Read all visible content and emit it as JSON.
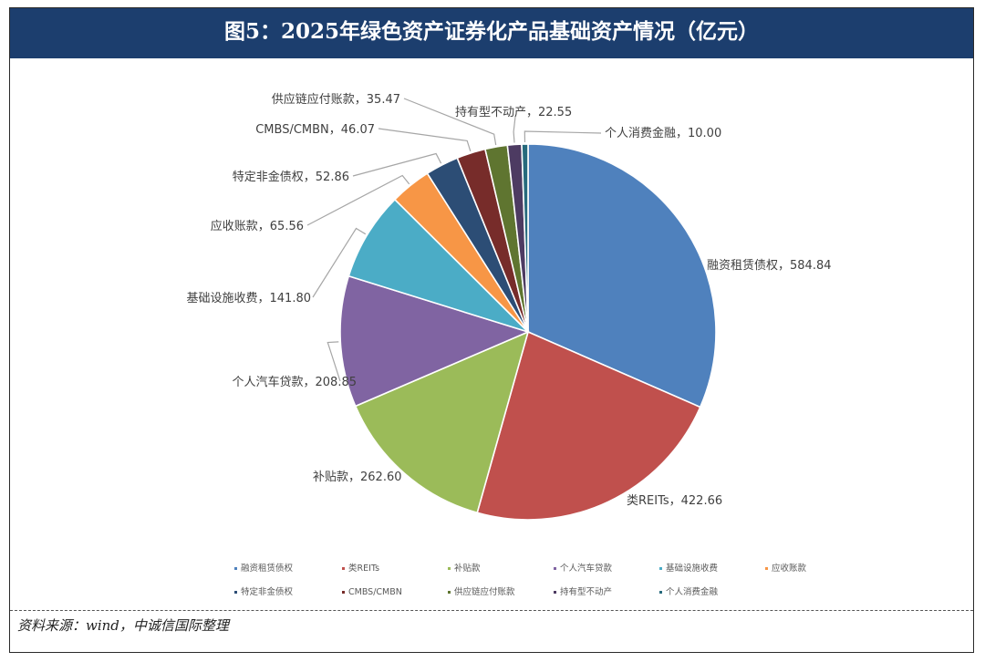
{
  "title": "图5：2025年绿色资产证券化产品基础资产情况（亿元）",
  "source": "资料来源：wind，中诚信国际整理",
  "chart_data": {
    "type": "pie",
    "title": "图5：2025年绿色资产证券化产品基础资产情况（亿元）",
    "unit": "亿元",
    "categories": [
      "融资租赁债权",
      "类REITs",
      "补贴款",
      "个人汽车贷款",
      "基础设施收费",
      "应收账款",
      "特定非金债权",
      "CMBS/CMBN",
      "供应链应付账款",
      "持有型不动产",
      "个人消费金融"
    ],
    "values": [
      584.84,
      422.66,
      262.6,
      208.85,
      141.8,
      65.56,
      52.86,
      46.07,
      35.47,
      22.55,
      10.0
    ],
    "value_labels": [
      "584.84",
      "422.66",
      "262.60",
      "208.85",
      "141.80",
      "65.56",
      "52.86",
      "46.07",
      "35.47",
      "22.55",
      "10.00"
    ],
    "colors": [
      "#4f81bd",
      "#c0504d",
      "#9bbb59",
      "#8064a2",
      "#4bacc6",
      "#f79646",
      "#2c4d75",
      "#772c2a",
      "#5f7530",
      "#4d3b62",
      "#276a7c"
    ],
    "legend": {
      "position": "bottom"
    }
  }
}
